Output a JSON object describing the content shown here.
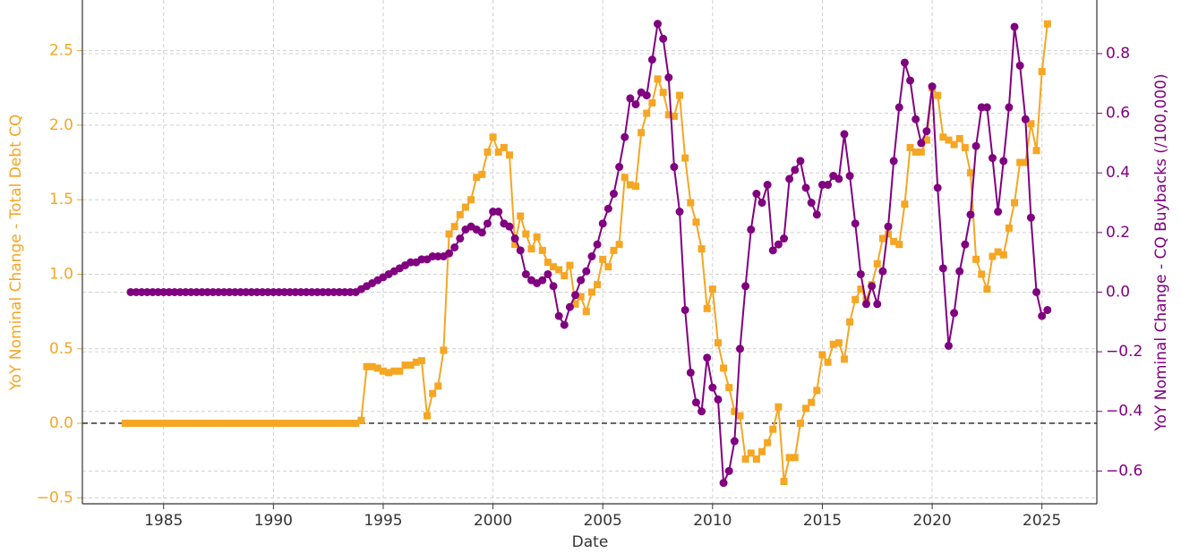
{
  "chart_data": {
    "type": "line",
    "xlabel": "Date",
    "ylabel": "YoY Nominal Change - Total Debt CQ",
    "y2label": "YoY Nominal Change - CQ Buybacks (/100,000)",
    "xlim": [
      1981.3,
      2027.5
    ],
    "ylim": [
      -0.54,
      2.84
    ],
    "y2lim": [
      -0.71,
      0.98
    ],
    "xticks": [
      1985,
      1990,
      1995,
      2000,
      2005,
      2010,
      2015,
      2020,
      2025
    ],
    "yticks": [
      {
        "value": -0.5,
        "label": "−0.5"
      },
      {
        "value": 0,
        "label": "0.0"
      },
      0.5,
      {
        "value": 1,
        "label": "1.0"
      },
      1.5,
      {
        "value": 2,
        "label": "2.0"
      },
      2.5
    ],
    "y2ticks": [
      {
        "value": -0.6,
        "label": "−0.6"
      },
      {
        "value": -0.4,
        "label": "−0.4"
      },
      {
        "value": -0.2,
        "label": "−0.2"
      },
      {
        "value": 0,
        "label": "0.0"
      },
      0.2,
      0.4,
      0.6,
      0.8
    ],
    "grid": true,
    "hline": 0,
    "x": [
      1983.25,
      1983.5,
      1983.75,
      1984,
      1984.25,
      1984.5,
      1984.75,
      1985,
      1985.25,
      1985.5,
      1985.75,
      1986,
      1986.25,
      1986.5,
      1986.75,
      1987,
      1987.25,
      1987.5,
      1987.75,
      1988,
      1988.25,
      1988.5,
      1988.75,
      1989,
      1989.25,
      1989.5,
      1989.75,
      1990,
      1990.25,
      1990.5,
      1990.75,
      1991,
      1991.25,
      1991.5,
      1991.75,
      1992,
      1992.25,
      1992.5,
      1992.75,
      1993,
      1993.25,
      1993.5,
      1993.75,
      1994,
      1994.25,
      1994.5,
      1994.75,
      1995,
      1995.25,
      1995.5,
      1995.75,
      1996,
      1996.25,
      1996.5,
      1996.75,
      1997,
      1997.25,
      1997.5,
      1997.75,
      1998,
      1998.25,
      1998.5,
      1998.75,
      1999,
      1999.25,
      1999.5,
      1999.75,
      2000,
      2000.25,
      2000.5,
      2000.75,
      2001,
      2001.25,
      2001.5,
      2001.75,
      2002,
      2002.25,
      2002.5,
      2002.75,
      2003,
      2003.25,
      2003.5,
      2003.75,
      2004,
      2004.25,
      2004.5,
      2004.75,
      2005,
      2005.25,
      2005.5,
      2005.75,
      2006,
      2006.25,
      2006.5,
      2006.75,
      2007,
      2007.25,
      2007.5,
      2007.75,
      2008,
      2008.25,
      2008.5,
      2008.75,
      2009,
      2009.25,
      2009.5,
      2009.75,
      2010,
      2010.25,
      2010.5,
      2010.75,
      2011,
      2011.25,
      2011.5,
      2011.75,
      2012,
      2012.25,
      2012.5,
      2012.75,
      2013,
      2013.25,
      2013.5,
      2013.75,
      2014,
      2014.25,
      2014.5,
      2014.75,
      2015,
      2015.25,
      2015.5,
      2015.75,
      2016,
      2016.25,
      2016.5,
      2016.75,
      2017,
      2017.25,
      2017.5,
      2017.75,
      2018,
      2018.25,
      2018.5,
      2018.75,
      2019,
      2019.25,
      2019.5,
      2019.75,
      2020,
      2020.25,
      2020.5,
      2020.75,
      2021,
      2021.25,
      2021.5,
      2021.75,
      2022,
      2022.25,
      2022.5,
      2022.75,
      2023,
      2023.25,
      2023.5,
      2023.75,
      2024,
      2024.25,
      2024.5,
      2024.75,
      2025,
      2025.25
    ],
    "series": [
      {
        "color": "#f5a623",
        "marker": "square",
        "axis": "y",
        "values": [
          0,
          0,
          0,
          0,
          0,
          0,
          0,
          0,
          0,
          0,
          0,
          0,
          0,
          0,
          0,
          0,
          0,
          0,
          0,
          0,
          0,
          0,
          0,
          0,
          0,
          0,
          0,
          0,
          0,
          0,
          0,
          0,
          0,
          0,
          0,
          0,
          0,
          0,
          0,
          0,
          0,
          0,
          0,
          0.02,
          0.38,
          0.38,
          0.37,
          0.35,
          0.34,
          0.35,
          0.35,
          0.39,
          0.39,
          0.41,
          0.42,
          0.05,
          0.2,
          0.25,
          0.49,
          1.27,
          1.32,
          1.4,
          1.45,
          1.5,
          1.65,
          1.67,
          1.82,
          1.92,
          1.82,
          1.85,
          1.8,
          1.2,
          1.39,
          1.27,
          1.17,
          1.25,
          1.16,
          1.08,
          1.05,
          1.03,
          0.99,
          1.06,
          0.8,
          0.85,
          0.75,
          0.88,
          0.93,
          1.1,
          1.05,
          1.16,
          1.2,
          1.65,
          1.6,
          1.59,
          1.95,
          2.08,
          2.15,
          2.31,
          2.22,
          2.07,
          2.06,
          2.2,
          1.78,
          1.48,
          1.35,
          1.17,
          0.77,
          0.9,
          0.54,
          0.37,
          0.24,
          0.08,
          0.05,
          -0.24,
          -0.2,
          -0.24,
          -0.19,
          -0.13,
          -0.04,
          0.11,
          -0.39,
          -0.23,
          -0.23,
          0,
          0.1,
          0.14,
          0.22,
          0.46,
          0.41,
          0.53,
          0.54,
          0.43,
          0.68,
          0.83,
          0.9,
          0.83,
          0.93,
          1.07,
          1.24,
          1.27,
          1.22,
          1.2,
          1.47,
          1.85,
          1.82,
          1.82,
          1.9,
          2.25,
          2.2,
          1.92,
          1.9,
          1.87,
          1.91,
          1.85,
          1.68,
          1.1,
          1.0,
          0.9,
          1.12,
          1.15,
          1.13,
          1.31,
          1.48,
          1.75,
          1.75,
          2.01,
          1.83,
          2.36,
          2.68
        ]
      },
      {
        "color": "#800080",
        "marker": "circle",
        "axis": "y2",
        "values": [
          null,
          0,
          0,
          0,
          0,
          0,
          0,
          0,
          0,
          0,
          0,
          0,
          0,
          0,
          0,
          0,
          0,
          0,
          0,
          0,
          0,
          0,
          0,
          0,
          0,
          0,
          0,
          0,
          0,
          0,
          0,
          0,
          0,
          0,
          0,
          0,
          0,
          0,
          0,
          0,
          0,
          0,
          0,
          0.01,
          0.02,
          0.03,
          0.04,
          0.05,
          0.06,
          0.07,
          0.08,
          0.09,
          0.1,
          0.1,
          0.11,
          0.11,
          0.12,
          0.12,
          0.12,
          0.13,
          0.15,
          0.18,
          0.21,
          0.22,
          0.21,
          0.2,
          0.23,
          0.27,
          0.27,
          0.23,
          0.22,
          0.18,
          0.14,
          0.06,
          0.04,
          0.03,
          0.04,
          0.06,
          0.02,
          -0.08,
          -0.11,
          -0.05,
          -0.01,
          0.04,
          0.07,
          0.12,
          0.16,
          0.23,
          0.28,
          0.33,
          0.42,
          0.52,
          0.65,
          0.63,
          0.67,
          0.66,
          0.78,
          0.9,
          0.85,
          0.72,
          0.42,
          0.27,
          -0.06,
          -0.27,
          -0.37,
          -0.4,
          -0.22,
          -0.32,
          -0.36,
          -0.64,
          -0.6,
          -0.5,
          -0.19,
          0.02,
          0.21,
          0.33,
          0.3,
          0.36,
          0.14,
          0.16,
          0.18,
          0.38,
          0.41,
          0.44,
          0.35,
          0.3,
          0.26,
          0.36,
          0.36,
          0.39,
          0.38,
          0.53,
          0.39,
          0.23,
          0.06,
          -0.04,
          0.02,
          -0.04,
          0.07,
          0.22,
          0.44,
          0.62,
          0.77,
          0.71,
          0.58,
          0.5,
          0.54,
          0.69,
          0.35,
          0.08,
          -0.18,
          -0.07,
          0.07,
          0.16,
          0.26,
          0.49,
          0.62,
          0.62,
          0.45,
          0.27,
          0.44,
          0.62,
          0.89,
          0.76,
          0.58,
          0.25,
          0,
          -0.08,
          -0.06
        ]
      }
    ]
  }
}
